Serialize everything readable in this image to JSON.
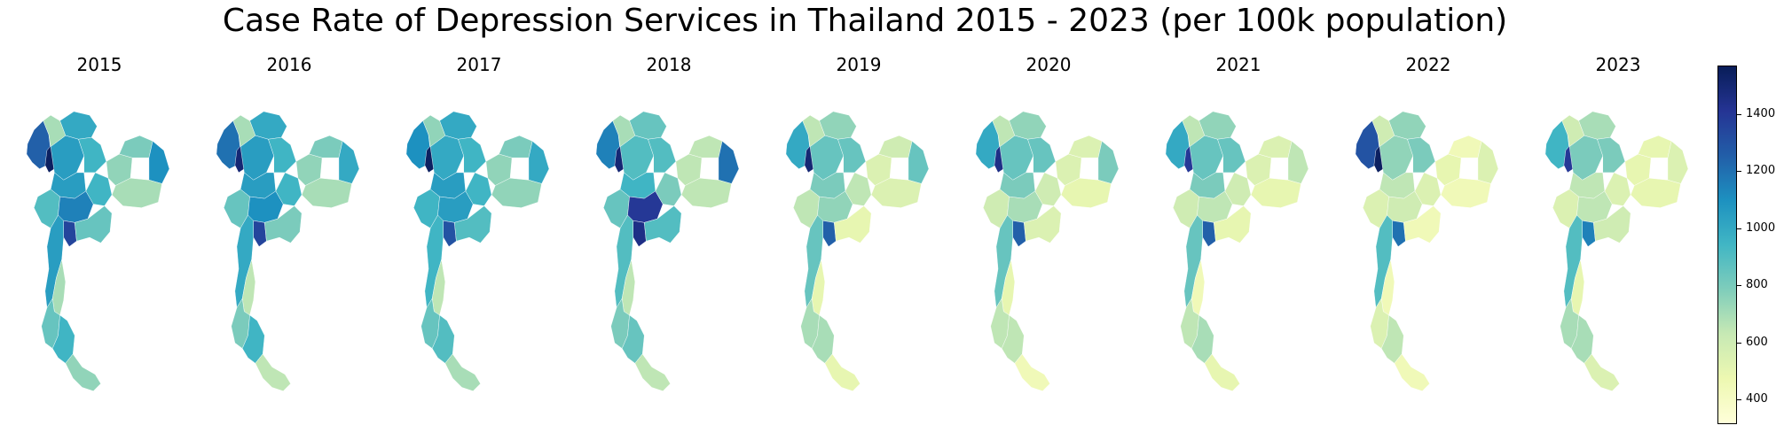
{
  "title": "Case Rate of Depression Services in Thailand 2015 - 2023 (per 100k population)",
  "years": [
    "2015",
    "2016",
    "2017",
    "2018",
    "2019",
    "2020",
    "2021",
    "2022",
    "2023"
  ],
  "colorbar": {
    "colormap": "YlGnBu",
    "min": 320,
    "max": 1570,
    "ticks": [
      {
        "value": 400,
        "label": "400"
      },
      {
        "value": 600,
        "label": "600"
      },
      {
        "value": 800,
        "label": "800"
      },
      {
        "value": 1000,
        "label": "1000"
      },
      {
        "value": 1200,
        "label": "1200"
      },
      {
        "value": 1400,
        "label": "1400"
      }
    ],
    "colors": [
      "#ffffd9",
      "#edf8b1",
      "#c7e9b4",
      "#7fcdbb",
      "#41b6c4",
      "#1d91c0",
      "#225ea8",
      "#253494",
      "#081d58"
    ]
  },
  "regions": [
    "north-west",
    "north-west-inner",
    "north-east-top",
    "north-central",
    "north-east-upper",
    "north-corner",
    "northern-belt",
    "central-west",
    "central-band",
    "central-east",
    "isan-west",
    "isan-north",
    "isan-east",
    "isan-south",
    "bangkok",
    "east-coast",
    "west-strip",
    "south-upper",
    "south-west-coast",
    "south-middle",
    "south-tip"
  ],
  "region_values": [
    [
      1250,
      1550,
      1000,
      1050,
      950,
      700,
      1050,
      900,
      1150,
      950,
      750,
      800,
      1100,
      700,
      1350,
      850,
      1050,
      700,
      850,
      950,
      750
    ],
    [
      1200,
      1500,
      1000,
      1050,
      950,
      700,
      1050,
      850,
      1100,
      950,
      750,
      800,
      1000,
      700,
      1350,
      800,
      1000,
      650,
      800,
      950,
      650
    ],
    [
      1100,
      1550,
      1000,
      1000,
      950,
      750,
      1050,
      950,
      1050,
      950,
      750,
      800,
      1000,
      750,
      1300,
      900,
      950,
      650,
      850,
      900,
      700
    ],
    [
      1150,
      1500,
      850,
      900,
      900,
      700,
      950,
      850,
      1400,
      800,
      650,
      650,
      1200,
      650,
      1450,
      900,
      900,
      650,
      800,
      850,
      650
    ],
    [
      1000,
      1500,
      750,
      850,
      850,
      650,
      800,
      650,
      750,
      650,
      550,
      600,
      850,
      550,
      1250,
      500,
      850,
      500,
      700,
      700,
      500
    ],
    [
      1000,
      1450,
      750,
      850,
      850,
      650,
      800,
      600,
      700,
      600,
      550,
      550,
      800,
      500,
      1250,
      550,
      850,
      500,
      650,
      650,
      450
    ],
    [
      1000,
      1400,
      750,
      850,
      850,
      650,
      800,
      600,
      650,
      600,
      550,
      550,
      650,
      500,
      1250,
      500,
      850,
      450,
      650,
      700,
      500
    ],
    [
      1300,
      1550,
      750,
      750,
      800,
      600,
      650,
      550,
      600,
      550,
      500,
      450,
      550,
      450,
      1200,
      450,
      900,
      450,
      550,
      650,
      450
    ],
    [
      950,
      1400,
      700,
      800,
      800,
      600,
      650,
      550,
      650,
      550,
      500,
      500,
      550,
      500,
      1150,
      600,
      900,
      500,
      700,
      700,
      550
    ]
  ]
}
